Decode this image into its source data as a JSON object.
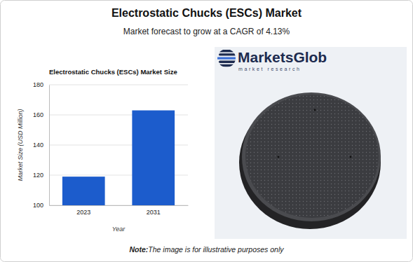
{
  "header": {
    "title": "Electrostatic Chucks (ESCs) Market",
    "subtitle": "Market forecast to grow at a CAGR of 4.13%"
  },
  "chart_data": {
    "type": "bar",
    "title": "Electrostatic Chucks (ESCs) Market Size",
    "x_label": "Year",
    "y_label": "Market Size (USD Million)",
    "categories": [
      "2023",
      "2031"
    ],
    "values": [
      119,
      163
    ],
    "color": "#1c5ccc",
    "ylim": [
      100,
      180
    ],
    "yticks": [
      100,
      120,
      140,
      160,
      180
    ],
    "grid": true
  },
  "illustration": {
    "logo": "MarketsGlob",
    "logo_tagline": "market research"
  },
  "note": {
    "label": "Note:",
    "text": "The image is for illustrative purposes only"
  }
}
